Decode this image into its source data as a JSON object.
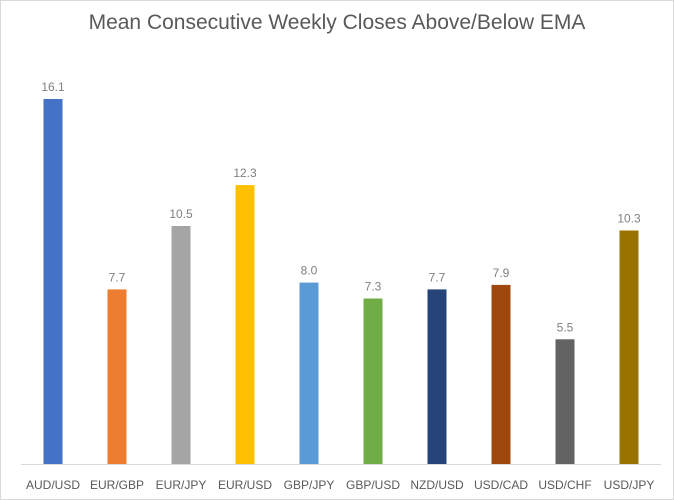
{
  "chart_data": {
    "type": "bar",
    "title": "Mean Consecutive Weekly Closes Above/Below EMA",
    "xlabel": "",
    "ylabel": "",
    "ylim": [
      0,
      16.1
    ],
    "grid": false,
    "legend": "none",
    "categories": [
      "AUD/USD",
      "EUR/GBP",
      "EUR/JPY",
      "EUR/USD",
      "GBP/JPY",
      "GBP/USD",
      "NZD/USD",
      "USD/CAD",
      "USD/CHF",
      "USD/JPY"
    ],
    "values": [
      16.1,
      7.7,
      10.5,
      12.3,
      8.0,
      7.3,
      7.7,
      7.9,
      5.5,
      10.3
    ],
    "data_labels": [
      "16.1",
      "7.7",
      "10.5",
      "12.3",
      "8.0",
      "7.3",
      "7.7",
      "7.9",
      "5.5",
      "10.3"
    ],
    "colors": [
      "#4472c4",
      "#ed7d31",
      "#a5a5a5",
      "#ffc000",
      "#5b9bd5",
      "#70ad47",
      "#264478",
      "#9e480e",
      "#636363",
      "#997300"
    ]
  }
}
